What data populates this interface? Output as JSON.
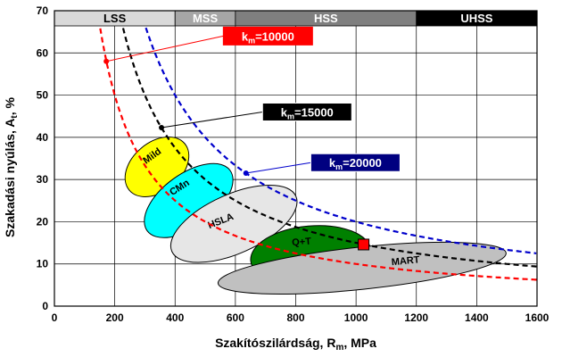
{
  "chart_data": {
    "type": "scatter",
    "xlabel": "Szakítószilárdság, R",
    "xlabel_sub": "m",
    "xlabel_unit": ", MPa",
    "ylabel": "Szakadási nyúlás, A",
    "ylabel_sub": "t",
    "ylabel_unit": ", %",
    "xlim": [
      0,
      1600
    ],
    "ylim": [
      0,
      70
    ],
    "xticks": [
      "0",
      "200",
      "400",
      "600",
      "800",
      "1000",
      "1200",
      "1400",
      "1600"
    ],
    "yticks": [
      "0",
      "10",
      "20",
      "30",
      "40",
      "50",
      "60",
      "70"
    ],
    "grid": true,
    "bands": [
      {
        "label": "LSS",
        "from": 0,
        "to": 400,
        "color": "#d9d9d9",
        "text_color": "#000000"
      },
      {
        "label": "MSS",
        "from": 400,
        "to": 600,
        "color": "#a6a6a6",
        "text_color": "#ffffff"
      },
      {
        "label": "HSS",
        "from": 600,
        "to": 1200,
        "color": "#7f7f7f",
        "text_color": "#ffffff"
      },
      {
        "label": "UHSS",
        "from": 1200,
        "to": 1600,
        "color": "#000000",
        "text_color": "#ffffff"
      }
    ],
    "series": [
      {
        "label_main": "k",
        "label_sub": "m",
        "label_value": "=10000",
        "k": 10000,
        "color": "#ff0000",
        "label_bg": "#ff0000",
        "label_border": "#ff0000",
        "marker": {
          "x": 172,
          "y": 58
        },
        "label_anchor": {
          "x": 560,
          "y": 64
        }
      },
      {
        "label_main": "k",
        "label_sub": "m",
        "label_value": "=15000",
        "k": 15000,
        "color": "#000000",
        "label_bg": "#000000",
        "label_border": "#ffffff",
        "marker": {
          "x": 355,
          "y": 42.3
        },
        "label_anchor": {
          "x": 690,
          "y": 46
        }
      },
      {
        "label_main": "k",
        "label_sub": "m",
        "label_value": "=20000",
        "k": 20000,
        "color": "#0000cc",
        "label_bg": "#000080",
        "label_border": "#ffffff",
        "marker": {
          "x": 635,
          "y": 31.5
        },
        "label_anchor": {
          "x": 850,
          "y": 34
        }
      }
    ],
    "regions": [
      {
        "label": "Mild",
        "cx": 340,
        "cy": 33,
        "rx": 120,
        "ry": 5.8,
        "angle": -40,
        "fill": "#ffff00",
        "label_x": 330,
        "label_y": 35
      },
      {
        "label": "CMn",
        "cx": 445,
        "cy": 25,
        "rx": 170,
        "ry": 6.3,
        "angle": -36,
        "fill": "#00ffff",
        "label_x": 420,
        "label_y": 27.5
      },
      {
        "label": "HSLA",
        "cx": 595,
        "cy": 19.5,
        "rx": 225,
        "ry": 7,
        "angle": -24,
        "fill": "#e6e6e6",
        "label_x": 555,
        "label_y": 19.5
      },
      {
        "label": "Q+T",
        "cx": 850,
        "cy": 12,
        "rx": 200,
        "ry": 7,
        "angle": -5,
        "fill": "#008000",
        "label_x": 820,
        "label_y": 14.5
      },
      {
        "label": "MART",
        "cx": 1020,
        "cy": 9,
        "rx": 480,
        "ry": 5,
        "angle": -6,
        "fill": "#c0c0c0",
        "label_x": 1165,
        "label_y": 10
      }
    ],
    "square_marker": {
      "x": 1025,
      "y": 14.6,
      "color": "#ff0000"
    }
  }
}
